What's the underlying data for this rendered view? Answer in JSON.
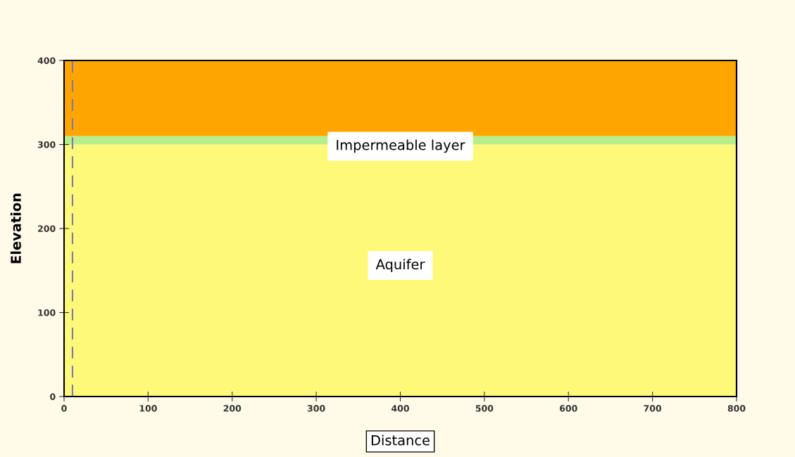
{
  "chart_data": {
    "type": "area",
    "stacked": true,
    "xlabel": "Distance",
    "ylabel": "Elevation",
    "x": [
      0,
      800
    ],
    "series": [
      {
        "color": "#fff97a",
        "values": [
          300,
          300
        ]
      },
      {
        "color": "#b8ef8c",
        "values": [
          10,
          10
        ]
      },
      {
        "color": "#ffa500",
        "values": [
          90,
          90
        ]
      }
    ],
    "xlim": [
      0,
      800
    ],
    "ylim": [
      0,
      400
    ],
    "xticks": [
      0,
      100,
      200,
      300,
      400,
      500,
      600,
      700,
      800
    ],
    "yticks": [
      0,
      100,
      200,
      300,
      400
    ],
    "ref_lines": [
      {
        "axis": "x",
        "value": 10,
        "color": "#7a7ab0",
        "line_style": "dashed"
      },
      {
        "axis": "x",
        "value": 800,
        "color": "#c00000",
        "line_style": "solid"
      }
    ],
    "annotations": [
      "Impermeable layer",
      "Aquifer"
    ],
    "grid": false,
    "legend": false
  }
}
